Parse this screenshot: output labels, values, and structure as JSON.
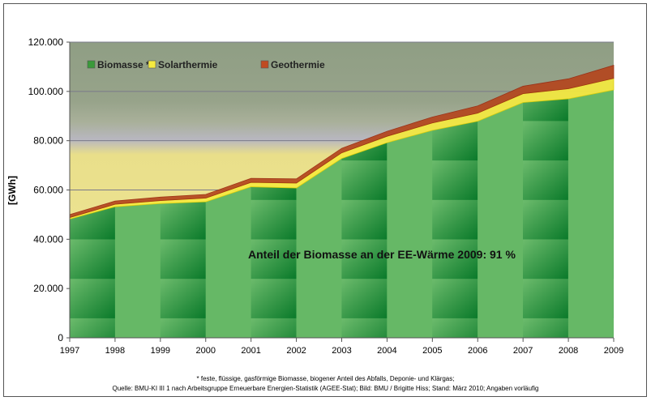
{
  "chart_data": {
    "type": "area",
    "stacked": true,
    "title": "",
    "xlabel": "",
    "ylabel": "[GWh]",
    "x": [
      1997,
      1998,
      1999,
      2000,
      2001,
      2002,
      2003,
      2004,
      2005,
      2006,
      2007,
      2008,
      2009
    ],
    "x_tick_labels": [
      "1997",
      "1998",
      "1999",
      "2000",
      "2001",
      "2002",
      "2003",
      "2004",
      "2005",
      "2006",
      "2007",
      "2008",
      "2009"
    ],
    "ylim": [
      0,
      120000
    ],
    "y_ticks": [
      0,
      20000,
      40000,
      60000,
      80000,
      100000,
      120000
    ],
    "y_tick_labels": [
      "0",
      "20.000",
      "40.000",
      "60.000",
      "80.000",
      "100.000",
      "120.000"
    ],
    "grid": true,
    "legend_placement": "top-left",
    "series": [
      {
        "name": "Biomasse *",
        "color": "#3a9a3a",
        "values": [
          48200,
          53200,
          54500,
          55200,
          61300,
          60800,
          72800,
          79200,
          84200,
          87900,
          95500,
          97000,
          100600
        ]
      },
      {
        "name": "Solarthermie",
        "color": "#f5e83a",
        "values": [
          600,
          1000,
          1200,
          1500,
          1800,
          2000,
          2300,
          2600,
          3000,
          3300,
          3600,
          4100,
          4700
        ]
      },
      {
        "name": "Geothermie",
        "color": "#b03a1a",
        "values": [
          1200,
          1300,
          1400,
          1500,
          1600,
          1700,
          1800,
          2000,
          2400,
          2900,
          3000,
          4000,
          5300
        ]
      }
    ],
    "annotation": "Anteil der Biomasse an der EE-Wärme 2009: 91 %"
  },
  "footnote": "* feste, flüssige, gasförmige Biomasse, biogener Anteil des Abfalls, Deponie- und Klärgas;",
  "source": "Quelle: BMU-KI III 1 nach Arbeitsgruppe Erneuerbare Energien-Statistik (AGEE-Stat); Bild: BMU / Brigitte Hiss; Stand: März 2010; Angaben vorläufig"
}
